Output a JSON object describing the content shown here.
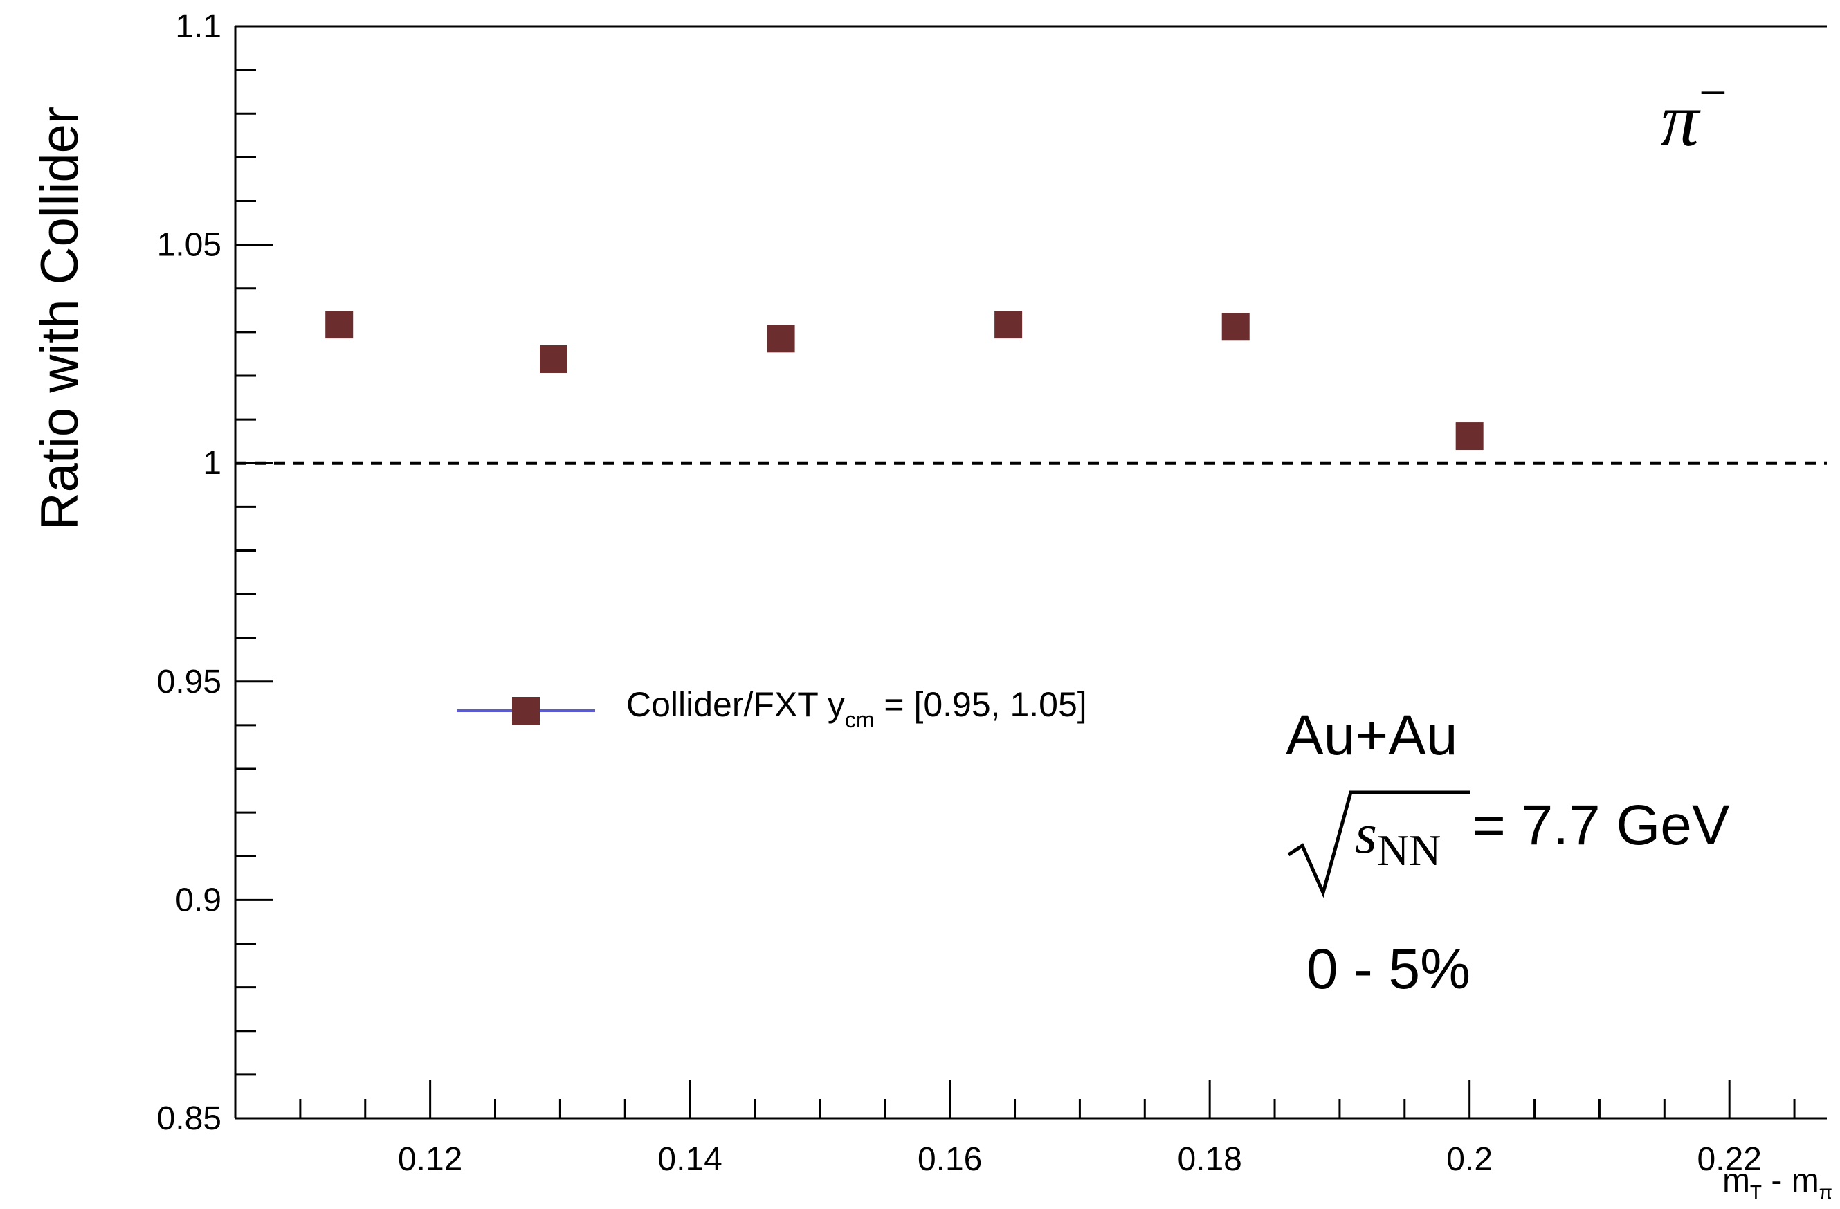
{
  "chart_data": {
    "type": "scatter",
    "xlabel_main": "m",
    "xlabel_sub1": "T",
    "xlabel_mid": " - m",
    "xlabel_sub2": "π",
    "ylabel": "Ratio with Collider",
    "xlim": [
      0.105,
      0.2275
    ],
    "ylim": [
      0.85,
      1.1
    ],
    "xticks": [
      0.12,
      0.14,
      0.16,
      0.18,
      0.2,
      0.22
    ],
    "xtick_labels": [
      "0.12",
      "0.14",
      "0.16",
      "0.18",
      "0.2",
      "0.22"
    ],
    "yticks": [
      0.85,
      0.9,
      0.95,
      1.0,
      1.05,
      1.1
    ],
    "ytick_labels": [
      "0.85",
      "0.9",
      "0.95",
      "1",
      "1.05",
      "1.1"
    ],
    "reference_line": 1.0,
    "series": [
      {
        "name": "Collider/FXT  y_cm = [0.95, 1.05]",
        "color": "#6b2d2d",
        "line_color": "#5b5bd6",
        "x": [
          0.113,
          0.1295,
          0.147,
          0.1645,
          0.182,
          0.2
        ],
        "y": [
          1.0317,
          1.0238,
          1.0285,
          1.0317,
          1.0312,
          1.0062
        ]
      }
    ],
    "legend": {
      "text_main": "Collider/FXT  y",
      "text_sub": "cm",
      "text_tail": " = [0.95, 1.05]"
    },
    "annotations": {
      "particle_base": "π",
      "particle_sup": "−",
      "system": "Au+Au",
      "sqrt_s": "s",
      "sqrt_s_sub": "NN",
      "energy": " = 7.7 GeV",
      "centrality": "0 - 5%"
    },
    "grid": false
  }
}
